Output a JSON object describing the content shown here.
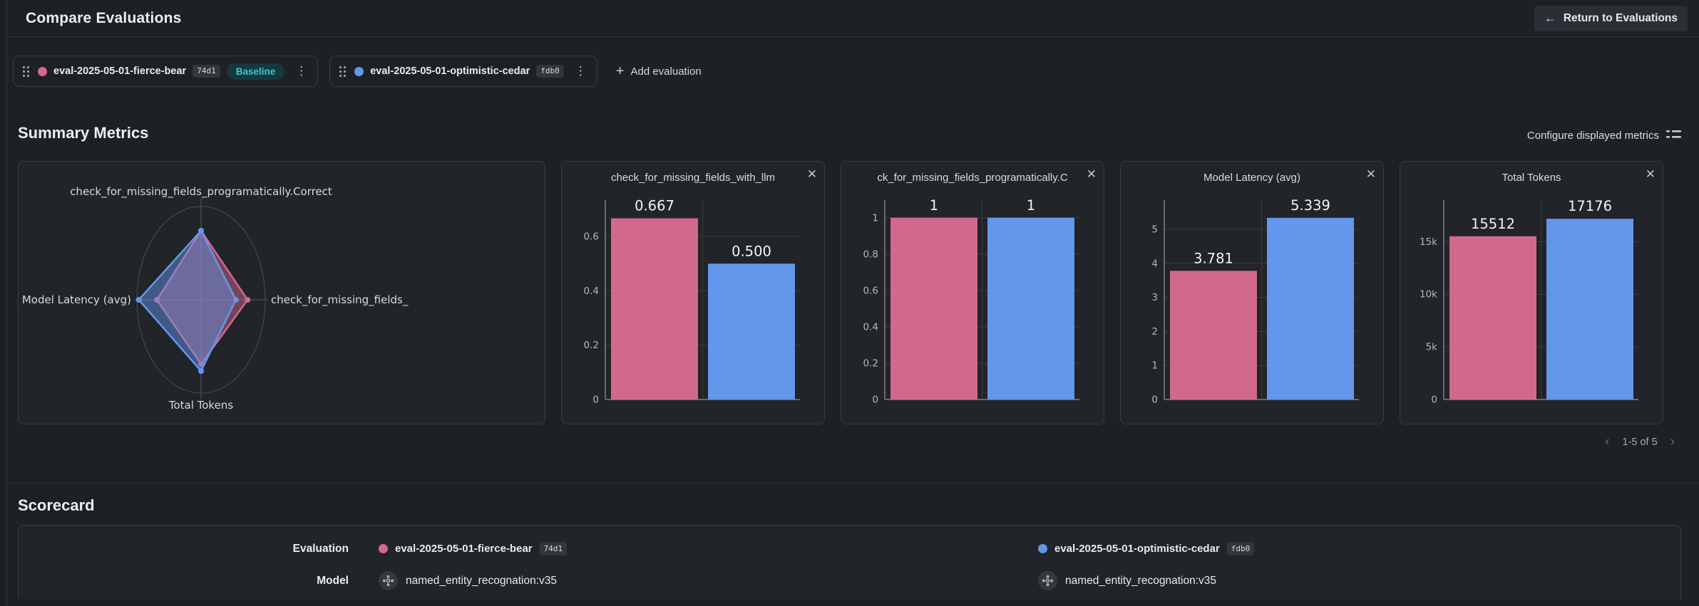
{
  "header": {
    "title": "Compare Evaluations",
    "return_button_label": "Return to Evaluations"
  },
  "icons": {
    "close": "✕",
    "add": "+",
    "arrow_left": "←",
    "chevron_left": "‹",
    "chevron_right": "›",
    "kebab": "⋮"
  },
  "evaluations_bar": {
    "items": [
      {
        "name": "eval-2025-05-01-fierce-bear",
        "hash": "74d1",
        "color": "#d2698c",
        "baseline_label": "Baseline"
      },
      {
        "name": "eval-2025-05-01-optimistic-cedar",
        "hash": "fdb0",
        "color": "#6496ec"
      }
    ],
    "add_label": "Add evaluation"
  },
  "summary": {
    "title": "Summary Metrics",
    "configure_label": "Configure displayed metrics",
    "pagination_label": "1-5 of 5"
  },
  "colors": {
    "pink_series": "#d2698c",
    "blue_series": "#6496ec",
    "baseline_badge_bg": "#16393f",
    "baseline_badge_text": "#40c4d1",
    "panel_bg": "#212428",
    "page_bg": "#1d2025"
  },
  "chart_data": [
    {
      "type": "radar",
      "axes_order": [
        "top",
        "right",
        "bottom",
        "left"
      ],
      "axes": [
        {
          "label": "check_for_missing_fields_programatically.Correct",
          "max": 1.35
        },
        {
          "label": "check_for_missing_fields_",
          "max": 0.92
        },
        {
          "label": "Total Tokens",
          "max": 22500
        },
        {
          "label": "Model Latency (avg)",
          "max": 5.5
        }
      ],
      "series": [
        {
          "name": "eval-2025-05-01-fierce-bear",
          "color": "#d2698c",
          "values": [
            1,
            0.667,
            15512,
            3.781
          ]
        },
        {
          "name": "eval-2025-05-01-optimistic-cedar",
          "color": "#6496ec",
          "values": [
            1,
            0.5,
            17176,
            5.339
          ]
        }
      ]
    },
    {
      "type": "bar",
      "title": "check_for_missing_fields_with_llm",
      "ylim": [
        0,
        0.734
      ],
      "ticks": [
        {
          "v": 0,
          "label": "0"
        },
        {
          "v": 0.2,
          "label": "0.2"
        },
        {
          "v": 0.4,
          "label": "0.4"
        },
        {
          "v": 0.6,
          "label": "0.6"
        }
      ],
      "series": [
        {
          "name": "eval-2025-05-01-fierce-bear",
          "color": "#d2698c",
          "value": 0.667,
          "label": "0.667"
        },
        {
          "name": "eval-2025-05-01-optimistic-cedar",
          "color": "#6496ec",
          "value": 0.5,
          "label": "0.500"
        }
      ]
    },
    {
      "type": "bar",
      "title": "ck_for_missing_fields_programatically.C",
      "ylim": [
        0,
        1.097
      ],
      "ticks": [
        {
          "v": 0,
          "label": "0"
        },
        {
          "v": 0.2,
          "label": "0.2"
        },
        {
          "v": 0.4,
          "label": "0.4"
        },
        {
          "v": 0.6,
          "label": "0.6"
        },
        {
          "v": 0.8,
          "label": "0.8"
        },
        {
          "v": 1,
          "label": "1"
        }
      ],
      "series": [
        {
          "name": "eval-2025-05-01-fierce-bear",
          "color": "#d2698c",
          "value": 1,
          "label": "1"
        },
        {
          "name": "eval-2025-05-01-optimistic-cedar",
          "color": "#6496ec",
          "value": 1,
          "label": "1"
        }
      ]
    },
    {
      "type": "bar",
      "title": "Model Latency (avg)",
      "ylim": [
        0,
        5.86
      ],
      "ticks": [
        {
          "v": 0,
          "label": "0"
        },
        {
          "v": 1,
          "label": "1"
        },
        {
          "v": 2,
          "label": "2"
        },
        {
          "v": 3,
          "label": "3"
        },
        {
          "v": 4,
          "label": "4"
        },
        {
          "v": 5,
          "label": "5"
        }
      ],
      "series": [
        {
          "name": "eval-2025-05-01-fierce-bear",
          "color": "#d2698c",
          "value": 3.781,
          "label": "3.781"
        },
        {
          "name": "eval-2025-05-01-optimistic-cedar",
          "color": "#6496ec",
          "value": 5.339,
          "label": "5.339"
        }
      ]
    },
    {
      "type": "bar",
      "title": "Total Tokens",
      "ylim": [
        0,
        18950
      ],
      "ticks": [
        {
          "v": 0,
          "label": "0"
        },
        {
          "v": 5000,
          "label": "5k"
        },
        {
          "v": 10000,
          "label": "10k"
        },
        {
          "v": 15000,
          "label": "15k"
        }
      ],
      "series": [
        {
          "name": "eval-2025-05-01-fierce-bear",
          "color": "#d2698c",
          "value": 15512,
          "label": "15512"
        },
        {
          "name": "eval-2025-05-01-optimistic-cedar",
          "color": "#6496ec",
          "value": 17176,
          "label": "17176"
        }
      ]
    }
  ],
  "scorecard": {
    "title": "Scorecard",
    "row_labels": {
      "evaluation": "Evaluation",
      "model": "Model"
    },
    "models": [
      "named_entity_recognation:v35",
      "named_entity_recognation:v35"
    ]
  }
}
